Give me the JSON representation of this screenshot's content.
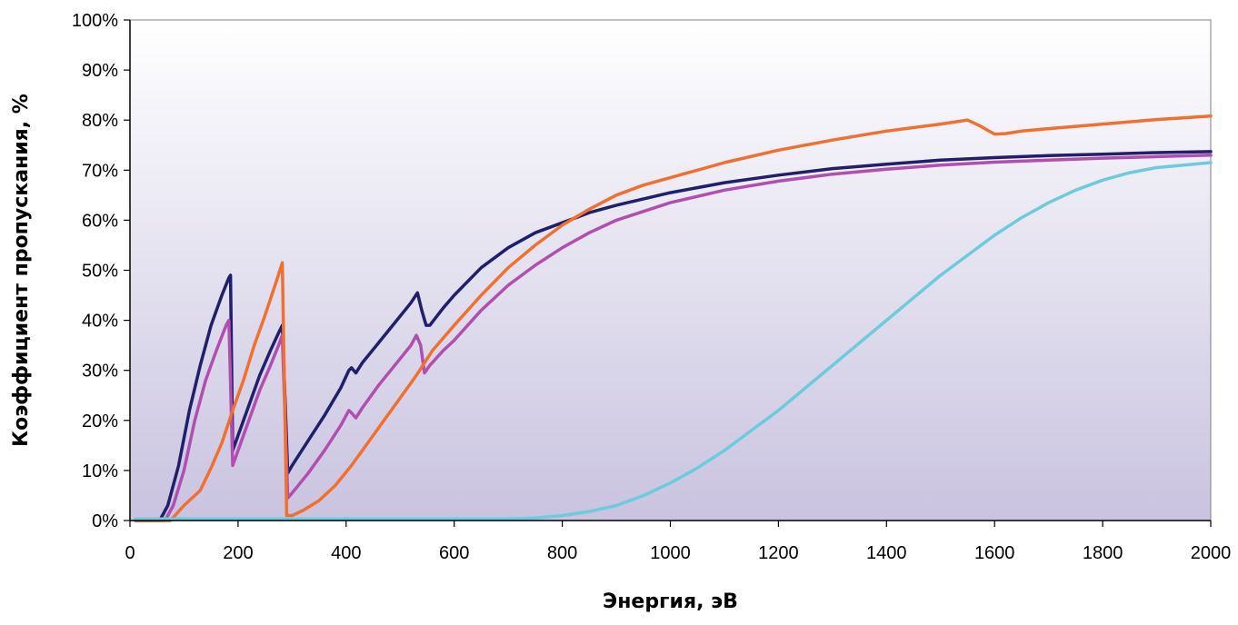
{
  "chart_data": {
    "type": "line",
    "title": "",
    "xlabel": "Энергия, эВ",
    "ylabel": "Коэффициент пропускания, %",
    "xlim": [
      0,
      2000
    ],
    "ylim": [
      0,
      100
    ],
    "x_ticks": [
      0,
      200,
      400,
      600,
      800,
      1000,
      1200,
      1400,
      1600,
      1800,
      2000
    ],
    "y_ticks": [
      0,
      10,
      20,
      30,
      40,
      50,
      60,
      70,
      80,
      90,
      100
    ],
    "y_tick_suffix": "%",
    "grid": false,
    "legend": "none",
    "plot_background": [
      "#ffffff",
      "#c9c3e0"
    ],
    "series": [
      {
        "color": "#1f1f6b",
        "points": [
          [
            10,
            0
          ],
          [
            55,
            0
          ],
          [
            70,
            3
          ],
          [
            90,
            11
          ],
          [
            110,
            22
          ],
          [
            130,
            31
          ],
          [
            150,
            39
          ],
          [
            170,
            45
          ],
          [
            183,
            48.5
          ],
          [
            186,
            49
          ],
          [
            190,
            14
          ],
          [
            200,
            17
          ],
          [
            220,
            23
          ],
          [
            240,
            29
          ],
          [
            260,
            34
          ],
          [
            275,
            37.5
          ],
          [
            282,
            39
          ],
          [
            292,
            9.5
          ],
          [
            300,
            11
          ],
          [
            330,
            16
          ],
          [
            360,
            21
          ],
          [
            390,
            26.5
          ],
          [
            405,
            30
          ],
          [
            410,
            30.5
          ],
          [
            418,
            29.5
          ],
          [
            430,
            31.5
          ],
          [
            460,
            35.5
          ],
          [
            490,
            39.5
          ],
          [
            520,
            43.5
          ],
          [
            532,
            45.5
          ],
          [
            540,
            42
          ],
          [
            548,
            39
          ],
          [
            555,
            39
          ],
          [
            580,
            42.5
          ],
          [
            600,
            45
          ],
          [
            650,
            50.5
          ],
          [
            700,
            54.5
          ],
          [
            750,
            57.5
          ],
          [
            800,
            59.5
          ],
          [
            850,
            61.5
          ],
          [
            900,
            63
          ],
          [
            1000,
            65.5
          ],
          [
            1100,
            67.5
          ],
          [
            1200,
            69
          ],
          [
            1300,
            70.3
          ],
          [
            1400,
            71.2
          ],
          [
            1500,
            72
          ],
          [
            1600,
            72.5
          ],
          [
            1700,
            72.9
          ],
          [
            1800,
            73.2
          ],
          [
            1900,
            73.5
          ],
          [
            2000,
            73.7
          ]
        ]
      },
      {
        "color": "#b04fb0",
        "points": [
          [
            10,
            0
          ],
          [
            65,
            0
          ],
          [
            80,
            3
          ],
          [
            100,
            10
          ],
          [
            120,
            20
          ],
          [
            140,
            28
          ],
          [
            160,
            34
          ],
          [
            178,
            39
          ],
          [
            183,
            40
          ],
          [
            190,
            11
          ],
          [
            200,
            14
          ],
          [
            220,
            20
          ],
          [
            240,
            26
          ],
          [
            260,
            31
          ],
          [
            275,
            35
          ],
          [
            282,
            37
          ],
          [
            292,
            4.5
          ],
          [
            300,
            5.5
          ],
          [
            330,
            9.5
          ],
          [
            360,
            14
          ],
          [
            390,
            19
          ],
          [
            405,
            22
          ],
          [
            410,
            21.5
          ],
          [
            418,
            20.5
          ],
          [
            430,
            22.5
          ],
          [
            460,
            27
          ],
          [
            490,
            31
          ],
          [
            520,
            35
          ],
          [
            530,
            37
          ],
          [
            538,
            35
          ],
          [
            545,
            29.5
          ],
          [
            555,
            31
          ],
          [
            580,
            34
          ],
          [
            600,
            36
          ],
          [
            650,
            42
          ],
          [
            700,
            47
          ],
          [
            750,
            51
          ],
          [
            800,
            54.5
          ],
          [
            850,
            57.5
          ],
          [
            900,
            60
          ],
          [
            1000,
            63.5
          ],
          [
            1100,
            66
          ],
          [
            1200,
            67.8
          ],
          [
            1300,
            69.2
          ],
          [
            1400,
            70.2
          ],
          [
            1500,
            71
          ],
          [
            1600,
            71.6
          ],
          [
            1700,
            72
          ],
          [
            1800,
            72.4
          ],
          [
            1900,
            72.7
          ],
          [
            2000,
            73
          ]
        ]
      },
      {
        "color": "#f07030",
        "points": [
          [
            10,
            0
          ],
          [
            75,
            0
          ],
          [
            100,
            3
          ],
          [
            130,
            6
          ],
          [
            150,
            10.5
          ],
          [
            170,
            15.5
          ],
          [
            190,
            22
          ],
          [
            210,
            28
          ],
          [
            230,
            35
          ],
          [
            250,
            41
          ],
          [
            270,
            47.5
          ],
          [
            282,
            51.5
          ],
          [
            290,
            1
          ],
          [
            300,
            1
          ],
          [
            320,
            2
          ],
          [
            350,
            4
          ],
          [
            380,
            7
          ],
          [
            410,
            11
          ],
          [
            440,
            15.5
          ],
          [
            470,
            20
          ],
          [
            500,
            24.5
          ],
          [
            530,
            29
          ],
          [
            560,
            34
          ],
          [
            600,
            39
          ],
          [
            650,
            45
          ],
          [
            700,
            50.5
          ],
          [
            750,
            55
          ],
          [
            800,
            59
          ],
          [
            850,
            62.2
          ],
          [
            900,
            65
          ],
          [
            950,
            67
          ],
          [
            1000,
            68.5
          ],
          [
            1100,
            71.5
          ],
          [
            1200,
            74
          ],
          [
            1300,
            76
          ],
          [
            1400,
            77.8
          ],
          [
            1500,
            79.2
          ],
          [
            1550,
            80
          ],
          [
            1570,
            79
          ],
          [
            1600,
            77.2
          ],
          [
            1620,
            77.3
          ],
          [
            1650,
            77.8
          ],
          [
            1700,
            78.3
          ],
          [
            1800,
            79.2
          ],
          [
            1900,
            80.1
          ],
          [
            2000,
            80.8
          ]
        ]
      },
      {
        "color": "#6ccbdc",
        "points": [
          [
            10,
            0.3
          ],
          [
            700,
            0.3
          ],
          [
            750,
            0.5
          ],
          [
            800,
            1
          ],
          [
            850,
            1.8
          ],
          [
            900,
            3
          ],
          [
            950,
            5
          ],
          [
            1000,
            7.5
          ],
          [
            1050,
            10.5
          ],
          [
            1100,
            14
          ],
          [
            1150,
            18
          ],
          [
            1200,
            22
          ],
          [
            1250,
            26.5
          ],
          [
            1300,
            31
          ],
          [
            1350,
            35.5
          ],
          [
            1400,
            40
          ],
          [
            1450,
            44.5
          ],
          [
            1500,
            49
          ],
          [
            1550,
            53
          ],
          [
            1600,
            57
          ],
          [
            1650,
            60.5
          ],
          [
            1700,
            63.5
          ],
          [
            1750,
            66
          ],
          [
            1800,
            68
          ],
          [
            1850,
            69.5
          ],
          [
            1900,
            70.5
          ],
          [
            1950,
            71
          ],
          [
            2000,
            71.5
          ]
        ]
      }
    ]
  }
}
